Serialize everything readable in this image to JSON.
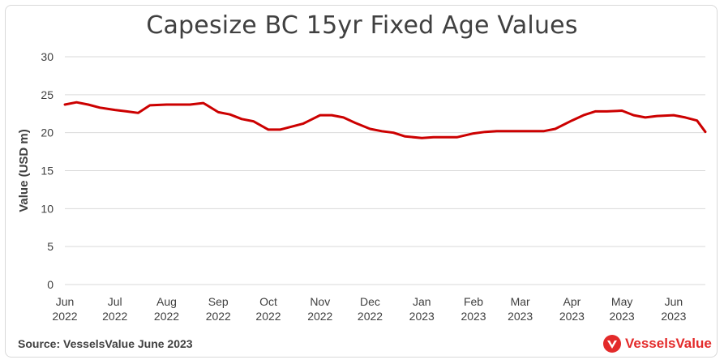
{
  "brand": {
    "name": "VesselsValue",
    "color": "#e32a2a",
    "icon": "vesselsvalue-logo-icon"
  },
  "source": "Source: VesselsValue June 2023",
  "colors": {
    "line": "#cc0000",
    "grid": "#d9d9d9",
    "text": "#404040"
  },
  "chart_data": {
    "type": "line",
    "title": "Capesize BC 15yr Fixed Age Values",
    "xlabel": "",
    "ylabel": "Value (USD m)",
    "ylim": [
      0,
      30
    ],
    "yticks": [
      0,
      5,
      10,
      15,
      20,
      25,
      30
    ],
    "grid": true,
    "xlim": [
      "2022-06-01",
      "2023-06-20"
    ],
    "xticks": [
      {
        "date": "2022-06-01",
        "month": "Jun",
        "year": "2022"
      },
      {
        "date": "2022-07-01",
        "month": "Jul",
        "year": "2022"
      },
      {
        "date": "2022-08-01",
        "month": "Aug",
        "year": "2022"
      },
      {
        "date": "2022-09-01",
        "month": "Sep",
        "year": "2022"
      },
      {
        "date": "2022-10-01",
        "month": "Oct",
        "year": "2022"
      },
      {
        "date": "2022-11-01",
        "month": "Nov",
        "year": "2022"
      },
      {
        "date": "2022-12-01",
        "month": "Dec",
        "year": "2022"
      },
      {
        "date": "2023-01-01",
        "month": "Jan",
        "year": "2023"
      },
      {
        "date": "2023-02-01",
        "month": "Feb",
        "year": "2023"
      },
      {
        "date": "2023-03-01",
        "month": "Mar",
        "year": "2023"
      },
      {
        "date": "2023-04-01",
        "month": "Apr",
        "year": "2023"
      },
      {
        "date": "2023-05-01",
        "month": "May",
        "year": "2023"
      },
      {
        "date": "2023-06-01",
        "month": "Jun",
        "year": "2023"
      }
    ],
    "series": [
      {
        "points": [
          [
            "2022-06-01",
            23.7
          ],
          [
            "2022-06-08",
            24.0
          ],
          [
            "2022-06-15",
            23.7
          ],
          [
            "2022-06-22",
            23.3
          ],
          [
            "2022-07-01",
            23.0
          ],
          [
            "2022-07-08",
            22.8
          ],
          [
            "2022-07-15",
            22.6
          ],
          [
            "2022-07-22",
            23.6
          ],
          [
            "2022-08-01",
            23.7
          ],
          [
            "2022-08-08",
            23.7
          ],
          [
            "2022-08-15",
            23.7
          ],
          [
            "2022-08-23",
            23.9
          ],
          [
            "2022-09-01",
            22.7
          ],
          [
            "2022-09-08",
            22.4
          ],
          [
            "2022-09-15",
            21.8
          ],
          [
            "2022-09-22",
            21.5
          ],
          [
            "2022-10-01",
            20.4
          ],
          [
            "2022-10-08",
            20.4
          ],
          [
            "2022-10-15",
            20.8
          ],
          [
            "2022-10-22",
            21.2
          ],
          [
            "2022-11-01",
            22.3
          ],
          [
            "2022-11-08",
            22.3
          ],
          [
            "2022-11-15",
            22.0
          ],
          [
            "2022-11-22",
            21.3
          ],
          [
            "2022-12-01",
            20.5
          ],
          [
            "2022-12-08",
            20.2
          ],
          [
            "2022-12-15",
            20.0
          ],
          [
            "2022-12-22",
            19.5
          ],
          [
            "2023-01-01",
            19.3
          ],
          [
            "2023-01-08",
            19.4
          ],
          [
            "2023-01-15",
            19.4
          ],
          [
            "2023-01-22",
            19.4
          ],
          [
            "2023-02-01",
            19.9
          ],
          [
            "2023-02-08",
            20.1
          ],
          [
            "2023-02-15",
            20.2
          ],
          [
            "2023-02-22",
            20.2
          ],
          [
            "2023-03-01",
            20.2
          ],
          [
            "2023-03-08",
            20.2
          ],
          [
            "2023-03-15",
            20.2
          ],
          [
            "2023-03-22",
            20.5
          ],
          [
            "2023-04-01",
            21.6
          ],
          [
            "2023-04-08",
            22.3
          ],
          [
            "2023-04-15",
            22.8
          ],
          [
            "2023-04-22",
            22.8
          ],
          [
            "2023-05-01",
            22.9
          ],
          [
            "2023-05-08",
            22.3
          ],
          [
            "2023-05-15",
            22.0
          ],
          [
            "2023-05-22",
            22.2
          ],
          [
            "2023-06-01",
            22.3
          ],
          [
            "2023-06-08",
            22.0
          ],
          [
            "2023-06-15",
            21.6
          ],
          [
            "2023-06-20",
            20.1
          ]
        ]
      }
    ]
  }
}
